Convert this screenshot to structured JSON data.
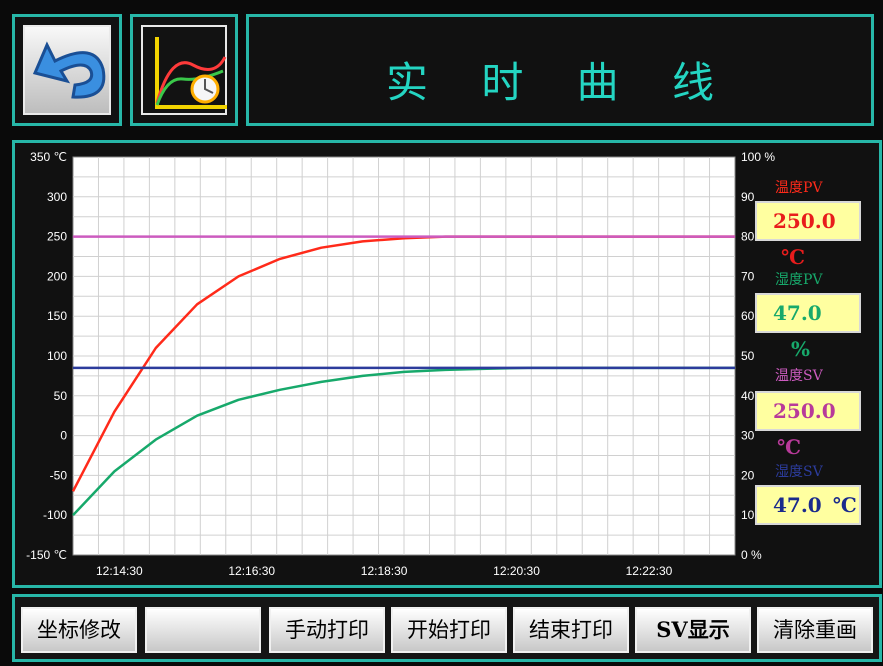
{
  "header": {
    "title": "实 时 曲 线",
    "back_icon": "back-arrow-icon",
    "trend_icon": "trend-curve-icon"
  },
  "colors": {
    "accent_border": "#27b7a8",
    "title": "#24d5c2",
    "temp_pv": "#ff2a1a",
    "humid_pv": "#17a96b",
    "temp_sv": "#cc5bbf",
    "humid_sv": "#2c3c9c"
  },
  "side": {
    "temp_pv_label": "温度PV",
    "temp_pv_value": "250.0",
    "temp_pv_unit": "℃",
    "humid_pv_label": "湿度PV",
    "humid_pv_value": "47.0",
    "humid_pv_unit": "%",
    "temp_sv_label": "温度SV",
    "temp_sv_value": "250.0",
    "temp_sv_unit": "℃",
    "humid_sv_label": "湿度SV",
    "humid_sv_value": "47.0",
    "humid_sv_unit": "℃"
  },
  "buttons": [
    "坐标修改",
    "",
    "手动打印",
    "开始打印",
    "结束打印",
    "SV显示",
    "清除重画"
  ],
  "chart_data": {
    "type": "line",
    "left_axis": {
      "ticks": [
        "350 ℃",
        "300",
        "250",
        "200",
        "150",
        "100",
        "50",
        "0",
        "-50",
        "-100",
        "-150 ℃"
      ],
      "range": [
        -150,
        350
      ]
    },
    "right_axis": {
      "ticks": [
        "100 %",
        "90",
        "80",
        "70",
        "60",
        "50",
        "40",
        "30",
        "20",
        "10",
        "0 %"
      ],
      "range": [
        0,
        100
      ]
    },
    "x_labels": [
      "12:14:30",
      "12:16:30",
      "12:18:30",
      "12:20:30",
      "12:22:30"
    ],
    "grid": true,
    "series": [
      {
        "name": "温度PV",
        "axis": "left",
        "color": "#ff2a1a",
        "values": [
          -70,
          30,
          110,
          165,
          200,
          222,
          236,
          244,
          248,
          250,
          250,
          250,
          250,
          250,
          250,
          250,
          250
        ]
      },
      {
        "name": "湿度PV",
        "axis": "right",
        "color": "#17a96b",
        "values": [
          10,
          21,
          29,
          35,
          39,
          41.5,
          43.5,
          45,
          46,
          46.5,
          46.8,
          47,
          47,
          47,
          47,
          47,
          47
        ]
      },
      {
        "name": "温度SV",
        "axis": "left",
        "color": "#cc5bbf",
        "values": [
          250,
          250,
          250,
          250,
          250,
          250,
          250,
          250,
          250,
          250,
          250,
          250,
          250,
          250,
          250,
          250,
          250
        ]
      },
      {
        "name": "湿度SV",
        "axis": "right",
        "color": "#2c3c9c",
        "values": [
          47,
          47,
          47,
          47,
          47,
          47,
          47,
          47,
          47,
          47,
          47,
          47,
          47,
          47,
          47,
          47,
          47
        ]
      }
    ]
  }
}
